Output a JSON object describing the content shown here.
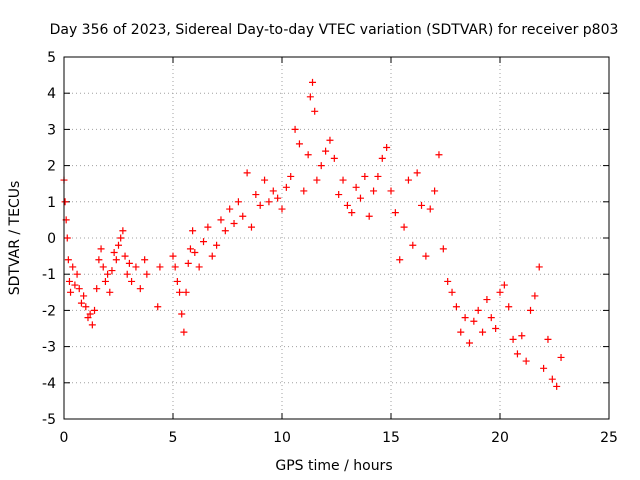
{
  "chart_data": {
    "type": "scatter",
    "title": "Day 356 of 2023, Sidereal Day-to-day VTEC variation (SDTVAR) for receiver p803",
    "xlabel": "GPS time / hours",
    "ylabel": "SDTVAR / TECUs",
    "xlim": [
      0,
      25
    ],
    "ylim": [
      -5,
      5
    ],
    "xticks": [
      0,
      5,
      10,
      15,
      20,
      25
    ],
    "yticks": [
      -5,
      -4,
      -3,
      -2,
      -1,
      0,
      1,
      2,
      3,
      4,
      5
    ],
    "grid": true,
    "marker": "+",
    "color": "#ff0000",
    "series": [
      {
        "name": "SDTVAR",
        "x": [
          0.0,
          0.05,
          0.1,
          0.15,
          0.2,
          0.25,
          0.3,
          0.4,
          0.5,
          0.6,
          0.7,
          0.8,
          0.9,
          1.0,
          1.1,
          1.2,
          1.3,
          1.4,
          1.5,
          1.6,
          1.7,
          1.8,
          1.9,
          2.0,
          2.1,
          2.2,
          2.3,
          2.4,
          2.5,
          2.6,
          2.7,
          2.8,
          2.9,
          3.0,
          3.1,
          3.3,
          3.5,
          3.7,
          3.8,
          4.3,
          4.4,
          5.0,
          5.1,
          5.2,
          5.3,
          5.4,
          5.5,
          5.6,
          5.7,
          5.8,
          5.9,
          6.0,
          6.2,
          6.4,
          6.6,
          6.8,
          7.0,
          7.2,
          7.4,
          7.6,
          7.8,
          8.0,
          8.2,
          8.4,
          8.6,
          8.8,
          9.0,
          9.2,
          9.4,
          9.6,
          9.8,
          10.0,
          10.2,
          10.4,
          10.6,
          10.8,
          11.0,
          11.2,
          11.3,
          11.4,
          11.5,
          11.6,
          11.8,
          12.0,
          12.2,
          12.4,
          12.6,
          12.8,
          13.0,
          13.2,
          13.4,
          13.6,
          13.8,
          14.0,
          14.2,
          14.4,
          14.6,
          14.8,
          15.0,
          15.2,
          15.4,
          15.6,
          15.8,
          16.0,
          16.2,
          16.4,
          16.6,
          16.8,
          17.0,
          17.2,
          17.4,
          17.6,
          17.8,
          18.0,
          18.2,
          18.4,
          18.6,
          18.8,
          19.0,
          19.2,
          19.4,
          19.6,
          19.8,
          20.0,
          20.2,
          20.4,
          20.6,
          20.8,
          21.0,
          21.2,
          21.4,
          21.6,
          21.8,
          22.0,
          22.2,
          22.4,
          22.6,
          22.8
        ],
        "y": [
          1.6,
          1.0,
          0.5,
          0.0,
          -0.6,
          -1.2,
          -1.5,
          -0.8,
          -1.3,
          -1.0,
          -1.4,
          -1.8,
          -1.6,
          -1.9,
          -2.2,
          -2.1,
          -2.4,
          -2.0,
          -1.4,
          -0.6,
          -0.3,
          -0.8,
          -1.2,
          -1.0,
          -1.5,
          -0.9,
          -0.4,
          -0.6,
          -0.2,
          0.0,
          0.2,
          -0.5,
          -1.0,
          -0.7,
          -1.2,
          -0.8,
          -1.4,
          -0.6,
          -1.0,
          -1.9,
          -0.8,
          -0.5,
          -0.8,
          -1.2,
          -1.5,
          -2.1,
          -2.6,
          -1.5,
          -0.7,
          -0.3,
          0.2,
          -0.4,
          -0.8,
          -0.1,
          0.3,
          -0.5,
          -0.2,
          0.5,
          0.2,
          0.8,
          0.4,
          1.0,
          0.6,
          1.8,
          0.3,
          1.2,
          0.9,
          1.6,
          1.0,
          1.3,
          1.1,
          0.8,
          1.4,
          1.7,
          3.0,
          2.6,
          1.3,
          2.3,
          3.9,
          4.3,
          3.5,
          1.6,
          2.0,
          2.4,
          2.7,
          2.2,
          1.2,
          1.6,
          0.9,
          0.7,
          1.4,
          1.1,
          1.7,
          0.6,
          1.3,
          1.7,
          2.2,
          2.5,
          1.3,
          0.7,
          -0.6,
          0.3,
          1.6,
          -0.2,
          1.8,
          0.9,
          -0.5,
          0.8,
          1.3,
          2.3,
          -0.3,
          -1.2,
          -1.5,
          -1.9,
          -2.6,
          -2.2,
          -2.9,
          -2.3,
          -2.0,
          -2.6,
          -1.7,
          -2.2,
          -2.5,
          -1.5,
          -1.3,
          -1.9,
          -2.8,
          -3.2,
          -2.7,
          -3.4,
          -2.0,
          -1.6,
          -0.8,
          -3.6,
          -2.8,
          -3.9,
          -4.1,
          -3.3
        ]
      }
    ]
  }
}
